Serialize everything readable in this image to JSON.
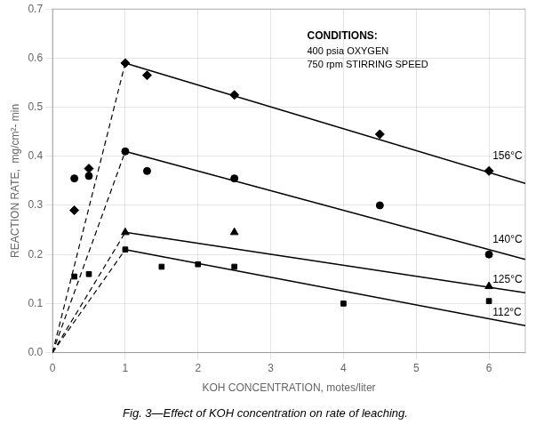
{
  "chart_data": {
    "type": "scatter",
    "title": "Fig. 3—Effect of KOH concentration on rate of leaching.",
    "xlabel": "KOH CONCENTRATION, motes/liter",
    "ylabel": "REACTION RATE,  mg/cm²- min",
    "xlim": [
      0,
      6.5
    ],
    "ylim": [
      0,
      0.7
    ],
    "xticks": [
      0,
      1.0,
      2.0,
      3.0,
      4.0,
      5.0,
      6.0
    ],
    "yticks": [
      {
        "value": 0,
        "label": "0.0"
      },
      0.1,
      0.2,
      0.3,
      0.4,
      0.5,
      0.6,
      0.7
    ],
    "grid": true,
    "series": [
      {
        "type": "scatter",
        "marker": "diamond",
        "color": "#000000",
        "x": [
          0.3,
          0.5,
          1.0,
          1.3,
          2.5,
          4.5,
          6.0
        ],
        "values": [
          0.29,
          0.375,
          0.59,
          0.565,
          0.525,
          0.445,
          0.37
        ]
      },
      {
        "type": "line",
        "line_style": "dashed",
        "color": "#000000",
        "x": [
          0,
          1.0
        ],
        "values": [
          0,
          0.59
        ]
      },
      {
        "type": "line",
        "line_style": "solid",
        "color": "#000000",
        "x": [
          1.0,
          6.5
        ],
        "values": [
          0.59,
          0.345
        ]
      },
      {
        "type": "scatter",
        "marker": "circle",
        "color": "#000000",
        "x": [
          0.3,
          0.5,
          1.0,
          1.3,
          2.5,
          4.5,
          6.0
        ],
        "values": [
          0.355,
          0.36,
          0.41,
          0.37,
          0.355,
          0.3,
          0.2
        ]
      },
      {
        "type": "line",
        "line_style": "dashed",
        "color": "#000000",
        "x": [
          0,
          1.0
        ],
        "values": [
          0,
          0.41
        ]
      },
      {
        "type": "line",
        "line_style": "solid",
        "color": "#000000",
        "x": [
          1.0,
          6.5
        ],
        "values": [
          0.41,
          0.19
        ]
      },
      {
        "type": "scatter",
        "marker": "triangle",
        "color": "#000000",
        "x": [
          1.0,
          2.5,
          6.0
        ],
        "values": [
          0.245,
          0.245,
          0.135
        ]
      },
      {
        "type": "line",
        "line_style": "dashed",
        "color": "#000000",
        "x": [
          0,
          1.0
        ],
        "values": [
          0,
          0.245
        ]
      },
      {
        "type": "line",
        "line_style": "solid",
        "color": "#000000",
        "x": [
          1.0,
          6.5
        ],
        "values": [
          0.245,
          0.122
        ]
      },
      {
        "type": "scatter",
        "marker": "square",
        "color": "#000000",
        "x": [
          0.3,
          0.5,
          1.0,
          1.5,
          2.0,
          2.5,
          4.0,
          6.0
        ],
        "values": [
          0.155,
          0.16,
          0.21,
          0.175,
          0.18,
          0.175,
          0.1,
          0.105
        ]
      },
      {
        "type": "line",
        "line_style": "dashed",
        "color": "#000000",
        "x": [
          0,
          1.0
        ],
        "values": [
          0,
          0.21
        ]
      },
      {
        "type": "line",
        "line_style": "solid",
        "color": "#000000",
        "x": [
          1.0,
          6.5
        ],
        "values": [
          0.21,
          0.055
        ]
      }
    ],
    "annotations": [
      {
        "text": "156°C",
        "x": 6.05,
        "y": 0.4
      },
      {
        "text": "140°C",
        "x": 6.05,
        "y": 0.23
      },
      {
        "text": "125°C",
        "x": 6.05,
        "y": 0.148
      },
      {
        "text": "112°C",
        "x": 6.05,
        "y": 0.082
      }
    ],
    "conditions": {
      "x": 3.5,
      "y": 0.655,
      "lines": [
        "CONDITIONS:",
        "400 psia OXYGEN",
        "750 rpm STIRRING SPEED"
      ]
    }
  }
}
